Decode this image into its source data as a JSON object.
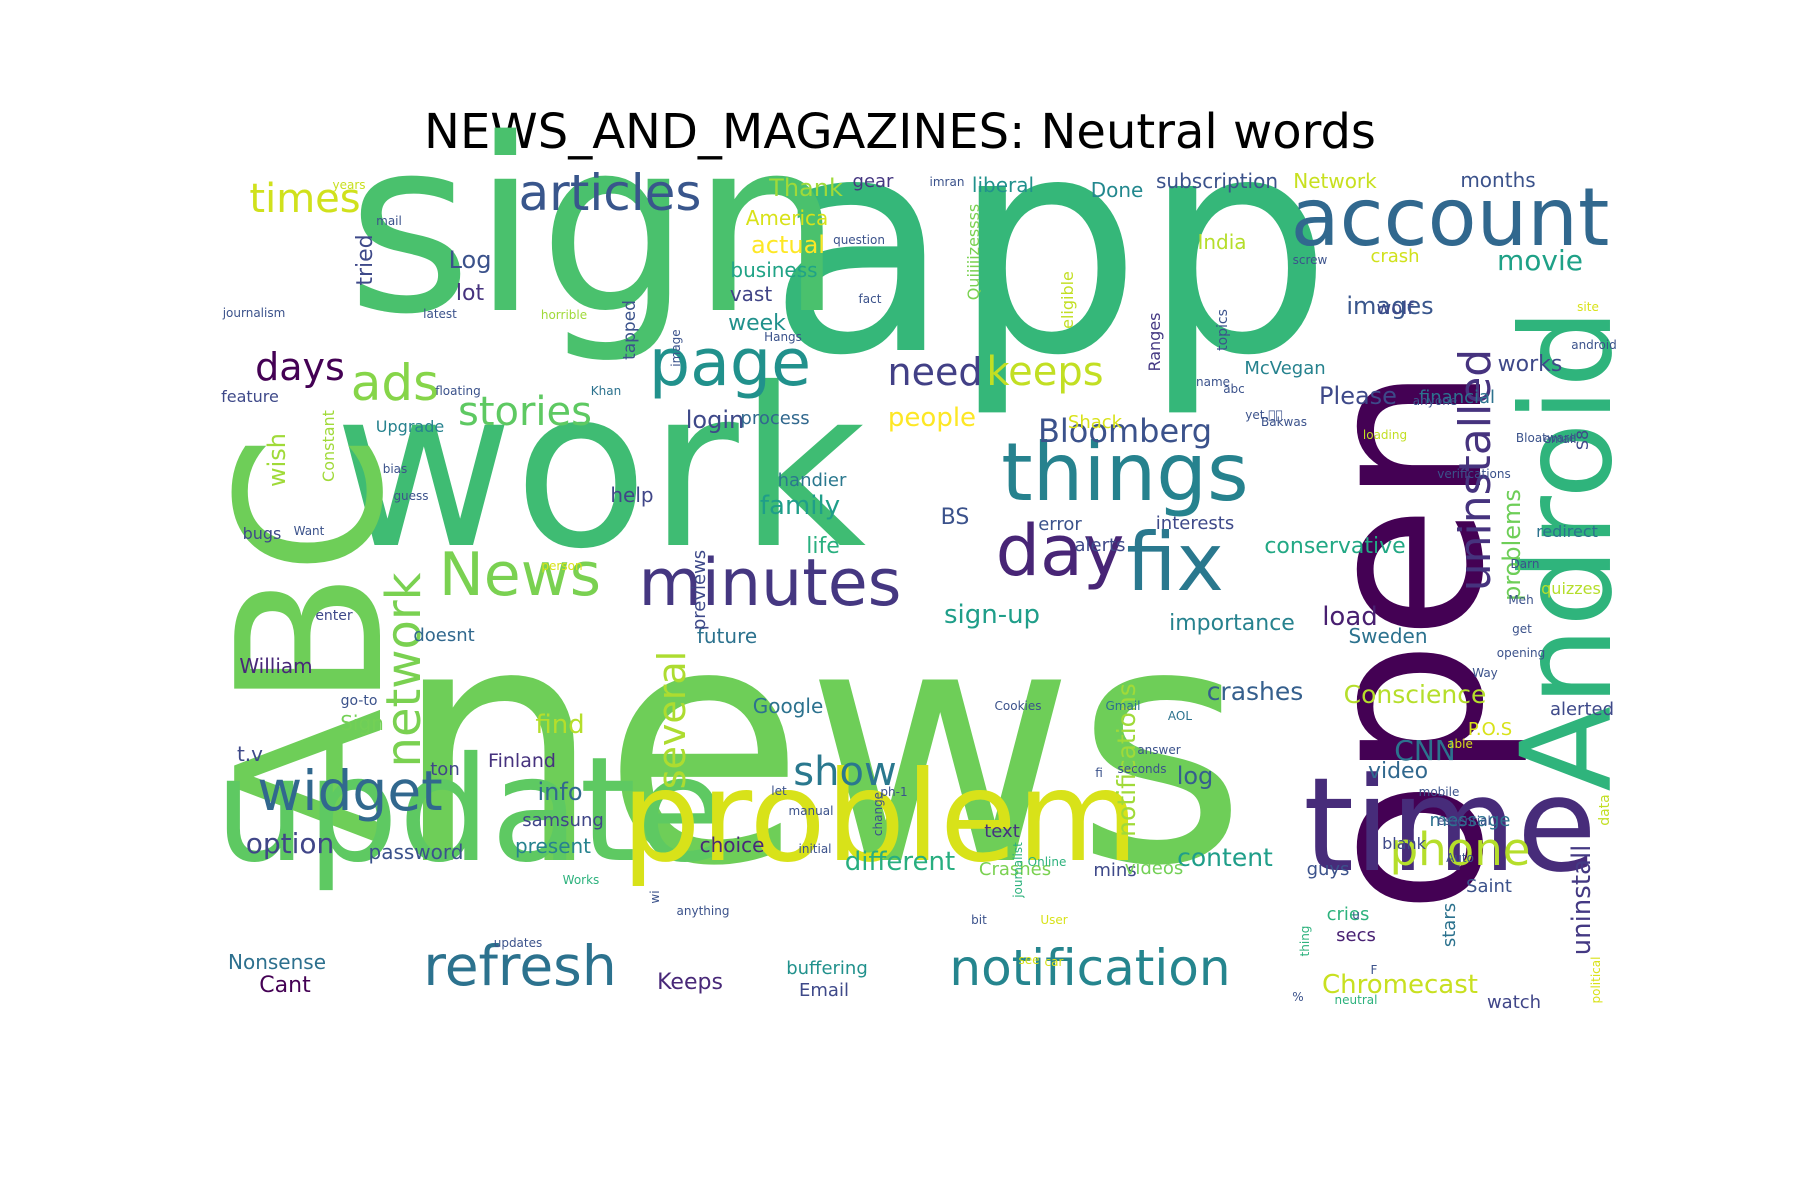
{
  "title": "NEWS_AND_MAGAZINES: Neutral words",
  "words": [
    {
      "text": "news",
      "color": "#6ece58"
    },
    {
      "text": "app",
      "color": "#35b779"
    },
    {
      "text": "sign",
      "color": "#4ac16d"
    },
    {
      "text": "work",
      "color": "#3fbc73"
    },
    {
      "text": "open",
      "color": "#440154"
    },
    {
      "text": "ABC",
      "color": "#6ece58"
    },
    {
      "text": "update",
      "color": "#5ec962"
    },
    {
      "text": "problem",
      "color": "#d8e219"
    },
    {
      "text": "time",
      "color": "#472c7a"
    },
    {
      "text": "Android",
      "color": "#2fb47c"
    },
    {
      "text": "account",
      "color": "#31688e"
    },
    {
      "text": "things",
      "color": "#26828e"
    },
    {
      "text": "fix",
      "color": "#2a788e"
    },
    {
      "text": "day",
      "color": "#482576"
    },
    {
      "text": "minutes",
      "color": "#453781"
    },
    {
      "text": "page",
      "color": "#21918c"
    },
    {
      "text": "articles",
      "color": "#39568c"
    },
    {
      "text": "News",
      "color": "#7ad151"
    },
    {
      "text": "refresh",
      "color": "#2c728e"
    },
    {
      "text": "notification",
      "color": "#25858e"
    },
    {
      "text": "widget",
      "color": "#31688e"
    },
    {
      "text": "network",
      "color": "#7ad151"
    },
    {
      "text": "phone",
      "color": "#b5de2b"
    },
    {
      "text": "uninstalled",
      "color": "#46337e"
    },
    {
      "text": "ads",
      "color": "#86d549"
    },
    {
      "text": "times",
      "color": "#d0e11c"
    },
    {
      "text": "stories",
      "color": "#5ec962"
    },
    {
      "text": "days",
      "color": "#440154"
    },
    {
      "text": "keeps",
      "color": "#c2df23"
    },
    {
      "text": "need",
      "color": "#424086"
    },
    {
      "text": "several",
      "color": "#addc30"
    },
    {
      "text": "show",
      "color": "#2a788e"
    },
    {
      "text": "Bloomberg",
      "color": "#3b528b"
    },
    {
      "text": "movie",
      "color": "#1fa187"
    },
    {
      "text": "images",
      "color": "#39568c"
    },
    {
      "text": "different",
      "color": "#28ae80"
    },
    {
      "text": "CNN",
      "color": "#2c728e"
    },
    {
      "text": "crashes",
      "color": "#355f8d"
    },
    {
      "text": "Conscience",
      "color": "#b5de2b"
    },
    {
      "text": "notifications",
      "color": "#a0da39"
    },
    {
      "text": "problems",
      "color": "#6ece58"
    },
    {
      "text": "uninstall",
      "color": "#443983"
    },
    {
      "text": "Chromecast",
      "color": "#c8e020"
    },
    {
      "text": "option",
      "color": "#404688"
    },
    {
      "text": "content",
      "color": "#1f9e89"
    },
    {
      "text": "conservative",
      "color": "#22a884"
    },
    {
      "text": "people",
      "color": "#fde725"
    },
    {
      "text": "family",
      "color": "#1f9e89"
    },
    {
      "text": "login",
      "color": "#3e4989"
    },
    {
      "text": "sign-up",
      "color": "#1f9e89"
    },
    {
      "text": "importance",
      "color": "#26828e"
    },
    {
      "text": "load",
      "color": "#481f70"
    },
    {
      "text": "Sweden",
      "color": "#2c728e"
    },
    {
      "text": "wish",
      "color": "#a0da39"
    },
    {
      "text": "video",
      "color": "#31688e"
    },
    {
      "text": "log",
      "color": "#355f8d"
    },
    {
      "text": "find",
      "color": "#b5de2b"
    },
    {
      "text": "info",
      "color": "#31688e"
    },
    {
      "text": "actual",
      "color": "#fde725"
    },
    {
      "text": "Log",
      "color": "#3b528b"
    },
    {
      "text": "lot",
      "color": "#46327e"
    },
    {
      "text": "week",
      "color": "#21918c"
    },
    {
      "text": "Please",
      "color": "#3e4989"
    },
    {
      "text": "works",
      "color": "#3e4989"
    },
    {
      "text": "Thank",
      "color": "#a0da39"
    },
    {
      "text": "BS",
      "color": "#3b528b"
    },
    {
      "text": "life",
      "color": "#29af7f"
    },
    {
      "text": "tried",
      "color": "#3e4989"
    },
    {
      "text": "Keeps",
      "color": "#482878"
    },
    {
      "text": "Cant",
      "color": "#440154"
    },
    {
      "text": "Nonsense",
      "color": "#2d708e"
    },
    {
      "text": "choice",
      "color": "#482878"
    },
    {
      "text": "present",
      "color": "#26828e"
    },
    {
      "text": "password",
      "color": "#3b528b"
    },
    {
      "text": "samsung",
      "color": "#404688"
    },
    {
      "text": "Finland",
      "color": "#46327e"
    },
    {
      "text": "Google",
      "color": "#2c728e"
    },
    {
      "text": "future",
      "color": "#2c728e"
    },
    {
      "text": "doesnt",
      "color": "#31688e"
    },
    {
      "text": "William",
      "color": "#482878"
    },
    {
      "text": "t.v",
      "color": "#3e4989"
    },
    {
      "text": "ton",
      "color": "#404688"
    },
    {
      "text": "Sign",
      "color": "#73d056"
    },
    {
      "text": "help",
      "color": "#404688"
    },
    {
      "text": "handier",
      "color": "#2a788e"
    },
    {
      "text": "previews",
      "color": "#3e4989"
    },
    {
      "text": "process",
      "color": "#31688e"
    },
    {
      "text": "Upgrade",
      "color": "#26828e"
    },
    {
      "text": "vast",
      "color": "#414487"
    },
    {
      "text": "business",
      "color": "#20a386"
    },
    {
      "text": "America",
      "color": "#d8e219"
    },
    {
      "text": "gear",
      "color": "#453781"
    },
    {
      "text": "liberal",
      "color": "#21918c"
    },
    {
      "text": "Done",
      "color": "#23888e"
    },
    {
      "text": "subscription",
      "color": "#3b528b"
    },
    {
      "text": "Network",
      "color": "#c8e020"
    },
    {
      "text": "months",
      "color": "#3b528b"
    },
    {
      "text": "crash",
      "color": "#d0e11c"
    },
    {
      "text": "India",
      "color": "#b5de2b"
    },
    {
      "text": "wolf",
      "color": "#3e4989"
    },
    {
      "text": "McVegan",
      "color": "#26828e"
    },
    {
      "text": "financial",
      "color": "#2c728e"
    },
    {
      "text": "Shack",
      "color": "#d8e219"
    },
    {
      "text": "error",
      "color": "#3b528b"
    },
    {
      "text": "interests",
      "color": "#3e4989"
    },
    {
      "text": "alerts",
      "color": "#3e4989"
    },
    {
      "text": "Crashes",
      "color": "#7ad151"
    },
    {
      "text": "mins",
      "color": "#3e4989"
    },
    {
      "text": "videos",
      "color": "#73d056"
    },
    {
      "text": "text",
      "color": "#46327e"
    },
    {
      "text": "guys",
      "color": "#3b528b"
    },
    {
      "text": "cries",
      "color": "#2db27d"
    },
    {
      "text": "secs",
      "color": "#482173"
    },
    {
      "text": "stars",
      "color": "#2c728e"
    },
    {
      "text": "blank",
      "color": "#3e4989"
    },
    {
      "text": "message",
      "color": "#2c728e"
    },
    {
      "text": "Saint",
      "color": "#3b528b"
    },
    {
      "text": "P.O.S",
      "color": "#d8e219"
    },
    {
      "text": "alerted",
      "color": "#3e4989"
    },
    {
      "text": "watch",
      "color": "#404688"
    },
    {
      "text": "Email",
      "color": "#3e4989"
    },
    {
      "text": "buffering",
      "color": "#21918c"
    },
    {
      "text": "redirect",
      "color": "#2c728e"
    },
    {
      "text": "quizzes",
      "color": "#b5de2b"
    },
    {
      "text": "S8",
      "color": "#3e4989"
    },
    {
      "text": "Quiiiiizessss",
      "color": "#7ad151"
    },
    {
      "text": "eligible",
      "color": "#c2df23"
    },
    {
      "text": "Ranges",
      "color": "#443983"
    },
    {
      "text": "tapped",
      "color": "#3b528b"
    },
    {
      "text": "Constant",
      "color": "#a0da39"
    },
    {
      "text": "feature",
      "color": "#3e4989"
    },
    {
      "text": "bugs",
      "color": "#3e4989"
    },
    {
      "text": "enter",
      "color": "#3e4989"
    },
    {
      "text": "go-to",
      "color": "#3b528b"
    },
    {
      "text": "topics",
      "color": "#3b528b"
    },
    {
      "text": "data",
      "color": "#c2df23"
    },
    {
      "text": "years",
      "color": "#c8e020"
    },
    {
      "text": "mail",
      "color": "#3b528b"
    },
    {
      "text": "journalism",
      "color": "#3b528b"
    },
    {
      "text": "latest",
      "color": "#3b528b"
    },
    {
      "text": "floating",
      "color": "#3b528b"
    },
    {
      "text": "Khan",
      "color": "#2c728e"
    },
    {
      "text": "bias",
      "color": "#3b528b"
    },
    {
      "text": "guess",
      "color": "#3b528b"
    },
    {
      "text": "Want",
      "color": "#3b528b"
    },
    {
      "text": "person",
      "color": "#d8e219"
    },
    {
      "text": "imran",
      "color": "#3b528b"
    },
    {
      "text": "question",
      "color": "#3b528b"
    },
    {
      "text": "fact",
      "color": "#3b528b"
    },
    {
      "text": "image",
      "color": "#3b528b"
    },
    {
      "text": "Hangs",
      "color": "#3b528b"
    },
    {
      "text": "horrible",
      "color": "#a0da39"
    },
    {
      "text": "screw",
      "color": "#3b528b"
    },
    {
      "text": "site",
      "color": "#d8e219"
    },
    {
      "text": "android",
      "color": "#3b528b"
    },
    {
      "text": "name",
      "color": "#3b528b"
    },
    {
      "text": "abc",
      "color": "#3b528b"
    },
    {
      "text": "yet.\u0000\u0000",
      "color": "#3b528b"
    },
    {
      "text": "Bakwas",
      "color": "#3b528b"
    },
    {
      "text": "anyone",
      "color": "#3b528b"
    },
    {
      "text": "loading",
      "color": "#c2df23"
    },
    {
      "text": "Bloatware",
      "color": "#3b528b"
    },
    {
      "text": "email",
      "color": "#3b528b"
    },
    {
      "text": "verifications",
      "color": "#3b528b"
    },
    {
      "text": "Darn",
      "color": "#3b528b"
    },
    {
      "text": "Meh",
      "color": "#3b528b"
    },
    {
      "text": "get",
      "color": "#3b528b"
    },
    {
      "text": "opening",
      "color": "#3b528b"
    },
    {
      "text": "Way",
      "color": "#3b528b"
    },
    {
      "text": "able",
      "color": "#d8e219"
    },
    {
      "text": "mobile",
      "color": "#3b528b"
    },
    {
      "text": "essential",
      "color": "#3b528b"
    },
    {
      "text": "Auto",
      "color": "#3b528b"
    },
    {
      "text": "journalist",
      "color": "#2db27d"
    },
    {
      "text": "Online",
      "color": "#2db27d"
    },
    {
      "text": "User",
      "color": "#d8e219"
    },
    {
      "text": "see",
      "color": "#d8e219"
    },
    {
      "text": "bit",
      "color": "#3b528b"
    },
    {
      "text": "car",
      "color": "#d8e219"
    },
    {
      "text": "neutral",
      "color": "#2db27d"
    },
    {
      "text": "political",
      "color": "#d8e219"
    },
    {
      "text": "Cookies",
      "color": "#3b528b"
    },
    {
      "text": "Gmail",
      "color": "#2c728e"
    },
    {
      "text": "AOL",
      "color": "#2c728e"
    },
    {
      "text": "answer",
      "color": "#3b528b"
    },
    {
      "text": "seconds",
      "color": "#3b528b"
    },
    {
      "text": "fi",
      "color": "#3b528b"
    },
    {
      "text": "ph-1",
      "color": "#3b528b"
    },
    {
      "text": "change",
      "color": "#3b528b"
    },
    {
      "text": "let",
      "color": "#3b528b"
    },
    {
      "text": "manual",
      "color": "#3b528b"
    },
    {
      "text": "initial",
      "color": "#3b528b"
    },
    {
      "text": "Works",
      "color": "#2db27d"
    },
    {
      "text": "wi",
      "color": "#3b528b"
    },
    {
      "text": "anything",
      "color": "#3b528b"
    },
    {
      "text": "thing",
      "color": "#2db27d"
    },
    {
      "text": "updates",
      "color": "#3b528b"
    },
    {
      "text": "u",
      "color": "#3b528b"
    },
    {
      "text": "F",
      "color": "#3b528b"
    },
    {
      "text": "%",
      "color": "#3b528b"
    }
  ]
}
